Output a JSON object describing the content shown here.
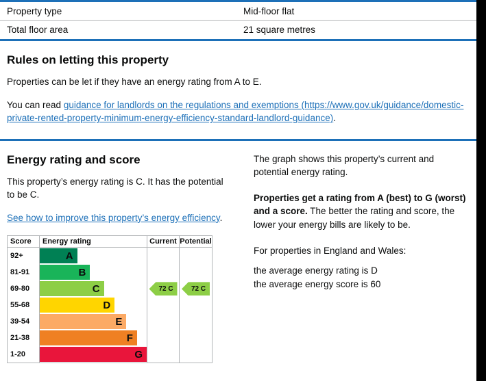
{
  "page": {
    "colors": {
      "accent_blue": "#1d70b8",
      "link_blue": "#1d70b8",
      "border_grey": "#b1b4b6",
      "text": "#0b0c0c",
      "edge_black": "#000000"
    }
  },
  "property_table": {
    "rows": [
      {
        "label": "Property type",
        "value": "Mid-floor flat"
      },
      {
        "label": "Total floor area",
        "value": "21 square metres"
      }
    ]
  },
  "letting_section": {
    "heading": "Rules on letting this property",
    "paragraph1": "Properties can be let if they have an energy rating from A to E.",
    "paragraph2_prefix": "You can read ",
    "guidance_link": "guidance for landlords on the regulations and exemptions (https://www.gov.uk/guidance/domestic-private-rented-property-minimum-energy-efficiency-standard-landlord-guidance)",
    "paragraph2_suffix": "."
  },
  "energy_section": {
    "heading": "Energy rating and score",
    "summary": "This property’s energy rating is C. It has the potential to be C.",
    "improve_link": "See how to improve this property’s energy efficiency",
    "improve_link_suffix": ".",
    "explainer": {
      "p1": "The graph shows this property’s current and potential energy rating.",
      "p2_bold": "Properties get a rating from A (best) to G (worst) and a score.",
      "p2_rest": " The better the rating and score, the lower your energy bills are likely to be.",
      "p3": "For properties in England and Wales:",
      "p4_line1": "the average energy rating is D",
      "p4_line2": "the average energy score is 60"
    }
  },
  "chart_data": {
    "type": "bar",
    "title": "Energy rating and score",
    "headers": {
      "score": "Score",
      "rating": "Energy rating",
      "current": "Current",
      "potential": "Potential"
    },
    "bands": [
      {
        "score": "92+",
        "letter": "A",
        "color": "#008054",
        "width_pct": 35
      },
      {
        "score": "81-91",
        "letter": "B",
        "color": "#19b459",
        "width_pct": 47
      },
      {
        "score": "69-80",
        "letter": "C",
        "color": "#8dce46",
        "width_pct": 60
      },
      {
        "score": "55-68",
        "letter": "D",
        "color": "#ffd500",
        "width_pct": 70
      },
      {
        "score": "39-54",
        "letter": "E",
        "color": "#fcaa65",
        "width_pct": 81
      },
      {
        "score": "21-38",
        "letter": "F",
        "color": "#ef8023",
        "width_pct": 91
      },
      {
        "score": "1-20",
        "letter": "G",
        "color": "#e9153b",
        "width_pct": 100
      }
    ],
    "current": {
      "label": "72 C",
      "value": 72,
      "rating": "C",
      "band_index": 2,
      "color": "#8dce46"
    },
    "potential": {
      "label": "72 C",
      "value": 72,
      "rating": "C",
      "band_index": 2,
      "color": "#8dce46"
    }
  }
}
